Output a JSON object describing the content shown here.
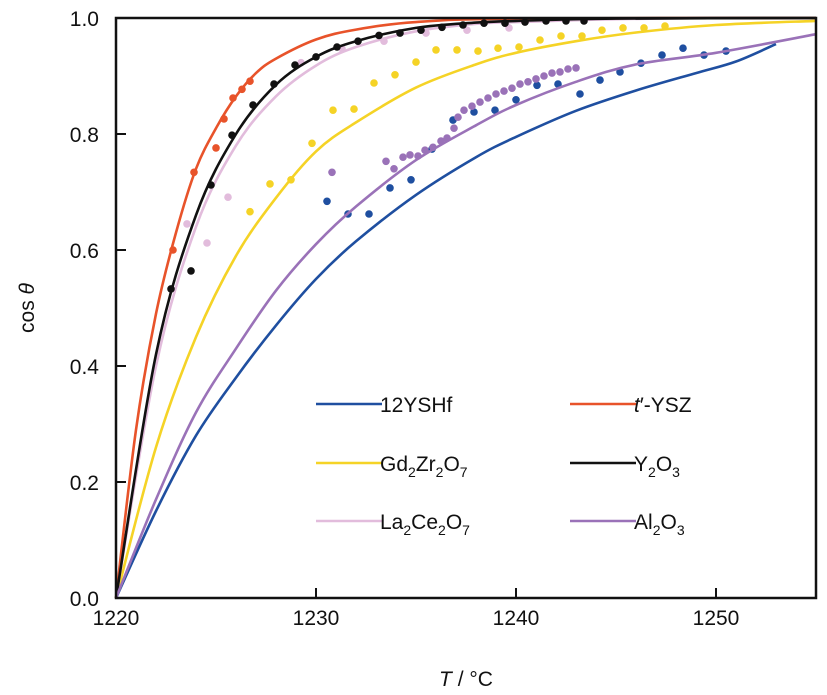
{
  "chart_data": {
    "type": "line",
    "title": "",
    "xlabel": "T / °C",
    "xlabel_italic": "T",
    "xlabel_rest": " / °C",
    "ylabel": "cos θ",
    "xlim": [
      1220,
      1255
    ],
    "ylim": [
      0.0,
      1.0
    ],
    "xticks": [
      1220,
      1230,
      1240,
      1250
    ],
    "xtick_labels": [
      "1220",
      "1230",
      "1240",
      "1250"
    ],
    "yticks": [
      0.0,
      0.2,
      0.4,
      0.6,
      0.8,
      1.0
    ],
    "ytick_labels": [
      "0.0",
      "0.2",
      "0.4",
      "0.6",
      "0.8",
      "1.0"
    ],
    "grid": false,
    "legend_placement": "lower-right",
    "series": [
      {
        "name": "12YSHf",
        "label_parts": [
          [
            "12YSHf",
            ""
          ]
        ],
        "color": "#1f4fa0",
        "fit": [
          [
            1220,
            0.0
          ],
          [
            1222,
            0.15
          ],
          [
            1224,
            0.28
          ],
          [
            1226,
            0.38
          ],
          [
            1228,
            0.47
          ],
          [
            1230,
            0.55
          ],
          [
            1232,
            0.615
          ],
          [
            1235,
            0.695
          ],
          [
            1238,
            0.76
          ],
          [
            1240,
            0.795
          ],
          [
            1243,
            0.84
          ],
          [
            1246,
            0.875
          ],
          [
            1249,
            0.905
          ],
          [
            1251,
            0.925
          ],
          [
            1253,
            0.955
          ]
        ],
        "points": [
          [
            1230.55,
            0.684
          ],
          [
            1231.6,
            0.662
          ],
          [
            1232.65,
            0.662
          ],
          [
            1233.7,
            0.707
          ],
          [
            1234.75,
            0.721
          ],
          [
            1235.8,
            0.774
          ],
          [
            1236.85,
            0.824
          ],
          [
            1237.9,
            0.838
          ],
          [
            1238.95,
            0.841
          ],
          [
            1240.0,
            0.859
          ],
          [
            1241.05,
            0.884
          ],
          [
            1242.1,
            0.886
          ],
          [
            1243.2,
            0.869
          ],
          [
            1244.2,
            0.893
          ],
          [
            1245.2,
            0.907
          ],
          [
            1246.25,
            0.922
          ],
          [
            1247.3,
            0.936
          ],
          [
            1248.35,
            0.948
          ],
          [
            1249.4,
            0.936
          ],
          [
            1250.5,
            0.943
          ]
        ]
      },
      {
        "name": "Gd2Zr2O7",
        "label_parts": [
          [
            "Gd",
            ""
          ],
          [
            "2",
            "sub"
          ],
          [
            "Zr",
            ""
          ],
          [
            "2",
            "sub"
          ],
          [
            "O",
            ""
          ],
          [
            "7",
            "sub"
          ]
        ],
        "color": "#f5d326",
        "fit": [
          [
            1220,
            0.0
          ],
          [
            1222,
            0.26
          ],
          [
            1224,
            0.45
          ],
          [
            1226,
            0.59
          ],
          [
            1228,
            0.69
          ],
          [
            1230,
            0.77
          ],
          [
            1232,
            0.82
          ],
          [
            1235,
            0.88
          ],
          [
            1238,
            0.92
          ],
          [
            1240,
            0.94
          ],
          [
            1243,
            0.96
          ],
          [
            1246,
            0.975
          ],
          [
            1250,
            0.988
          ],
          [
            1255,
            0.995
          ]
        ],
        "points": [
          [
            1226.7,
            0.666
          ],
          [
            1227.7,
            0.714
          ],
          [
            1228.75,
            0.721
          ],
          [
            1229.8,
            0.784
          ],
          [
            1230.85,
            0.841
          ],
          [
            1231.9,
            0.843
          ],
          [
            1232.9,
            0.888
          ],
          [
            1233.95,
            0.902
          ],
          [
            1235.0,
            0.924
          ],
          [
            1236.0,
            0.945
          ],
          [
            1237.05,
            0.945
          ],
          [
            1238.1,
            0.943
          ],
          [
            1239.1,
            0.948
          ],
          [
            1240.15,
            0.95
          ],
          [
            1241.2,
            0.962
          ],
          [
            1242.25,
            0.969
          ],
          [
            1243.3,
            0.969
          ],
          [
            1244.3,
            0.979
          ],
          [
            1245.35,
            0.983
          ],
          [
            1246.4,
            0.983
          ],
          [
            1247.45,
            0.986
          ]
        ]
      },
      {
        "name": "La2Ce2O7",
        "label_parts": [
          [
            "La",
            ""
          ],
          [
            "2",
            "sub"
          ],
          [
            "Ce",
            ""
          ],
          [
            "2",
            "sub"
          ],
          [
            "O",
            ""
          ],
          [
            "7",
            "sub"
          ]
        ],
        "color": "#e2bcdc",
        "fit": [
          [
            1220,
            0.0
          ],
          [
            1222,
            0.4
          ],
          [
            1224,
            0.64
          ],
          [
            1226,
            0.78
          ],
          [
            1228,
            0.865
          ],
          [
            1230,
            0.918
          ],
          [
            1232,
            0.95
          ],
          [
            1235,
            0.977
          ],
          [
            1238,
            0.99
          ],
          [
            1240,
            0.993
          ],
          [
            1245,
            0.998
          ],
          [
            1250,
            1.0
          ],
          [
            1255,
            1.0
          ]
        ],
        "points": [
          [
            1223.55,
            0.645
          ],
          [
            1224.55,
            0.612
          ],
          [
            1225.6,
            0.691
          ],
          [
            1229.25,
            0.923
          ],
          [
            1231.3,
            0.947
          ],
          [
            1233.4,
            0.96
          ],
          [
            1235.5,
            0.974
          ],
          [
            1237.55,
            0.979
          ],
          [
            1239.65,
            0.983
          ]
        ]
      },
      {
        "name": "t′-YSZ",
        "label_parts": [
          [
            "t",
            "italic"
          ],
          [
            "′-YSZ",
            ""
          ]
        ],
        "color": "#e8532a",
        "fit": [
          [
            1220,
            0.0
          ],
          [
            1221,
            0.29
          ],
          [
            1222,
            0.49
          ],
          [
            1223,
            0.63
          ],
          [
            1224,
            0.74
          ],
          [
            1225,
            0.81
          ],
          [
            1226,
            0.865
          ],
          [
            1227,
            0.905
          ],
          [
            1228,
            0.93
          ],
          [
            1230,
            0.963
          ],
          [
            1232,
            0.98
          ],
          [
            1235,
            0.993
          ],
          [
            1240,
            0.999
          ],
          [
            1255,
            1.0
          ]
        ],
        "points": [
          [
            1222.85,
            0.6
          ],
          [
            1223.9,
            0.734
          ],
          [
            1225.0,
            0.776
          ],
          [
            1225.4,
            0.826
          ],
          [
            1225.85,
            0.862
          ],
          [
            1226.3,
            0.877
          ],
          [
            1226.7,
            0.891
          ]
        ]
      },
      {
        "name": "Y2O3",
        "label_parts": [
          [
            "Y",
            ""
          ],
          [
            "2",
            "sub"
          ],
          [
            "O",
            ""
          ],
          [
            "3",
            "sub"
          ]
        ],
        "color": "#111111",
        "fit": [
          [
            1220,
            0.0
          ],
          [
            1222,
            0.42
          ],
          [
            1224,
            0.66
          ],
          [
            1226,
            0.8
          ],
          [
            1228,
            0.885
          ],
          [
            1230,
            0.933
          ],
          [
            1232,
            0.96
          ],
          [
            1235,
            0.983
          ],
          [
            1238,
            0.992
          ],
          [
            1240,
            0.995
          ],
          [
            1245,
            0.999
          ],
          [
            1255,
            1.0
          ]
        ],
        "points": [
          [
            1222.75,
            0.533
          ],
          [
            1223.75,
            0.564
          ],
          [
            1224.75,
            0.712
          ],
          [
            1225.8,
            0.798
          ],
          [
            1226.85,
            0.85
          ],
          [
            1227.9,
            0.886
          ],
          [
            1228.95,
            0.919
          ],
          [
            1230.0,
            0.933
          ],
          [
            1231.05,
            0.95
          ],
          [
            1232.1,
            0.96
          ],
          [
            1233.15,
            0.97
          ],
          [
            1234.2,
            0.974
          ],
          [
            1235.25,
            0.979
          ],
          [
            1236.3,
            0.984
          ],
          [
            1237.35,
            0.988
          ],
          [
            1238.4,
            0.991
          ],
          [
            1239.45,
            0.991
          ],
          [
            1240.45,
            0.993
          ],
          [
            1241.5,
            0.995
          ],
          [
            1242.5,
            0.995
          ],
          [
            1243.4,
            0.995
          ]
        ]
      },
      {
        "name": "Al2O3",
        "label_parts": [
          [
            "Al",
            ""
          ],
          [
            "2",
            "sub"
          ],
          [
            "O",
            ""
          ],
          [
            "3",
            "sub"
          ]
        ],
        "color": "#9a72b8",
        "fit": [
          [
            1220,
            0.0
          ],
          [
            1222,
            0.17
          ],
          [
            1224,
            0.32
          ],
          [
            1226,
            0.43
          ],
          [
            1228,
            0.53
          ],
          [
            1230,
            0.61
          ],
          [
            1232,
            0.675
          ],
          [
            1235,
            0.755
          ],
          [
            1238,
            0.815
          ],
          [
            1240,
            0.85
          ],
          [
            1243,
            0.89
          ],
          [
            1246,
            0.92
          ],
          [
            1250,
            0.94
          ],
          [
            1255,
            0.972
          ]
        ],
        "points": [
          [
            1230.8,
            0.734
          ],
          [
            1233.5,
            0.753
          ],
          [
            1233.9,
            0.74
          ],
          [
            1234.35,
            0.76
          ],
          [
            1234.7,
            0.764
          ],
          [
            1235.1,
            0.762
          ],
          [
            1235.45,
            0.772
          ],
          [
            1235.85,
            0.777
          ],
          [
            1236.25,
            0.788
          ],
          [
            1236.55,
            0.793
          ],
          [
            1236.9,
            0.81
          ],
          [
            1237.1,
            0.829
          ],
          [
            1237.4,
            0.841
          ],
          [
            1237.8,
            0.848
          ],
          [
            1238.2,
            0.855
          ],
          [
            1238.6,
            0.862
          ],
          [
            1239.0,
            0.869
          ],
          [
            1239.4,
            0.874
          ],
          [
            1239.8,
            0.879
          ],
          [
            1240.2,
            0.886
          ],
          [
            1240.6,
            0.89
          ],
          [
            1241.0,
            0.895
          ],
          [
            1241.4,
            0.9
          ],
          [
            1241.8,
            0.905
          ],
          [
            1242.2,
            0.907
          ],
          [
            1242.6,
            0.912
          ],
          [
            1243.0,
            0.914
          ]
        ]
      }
    ],
    "legend_order": [
      0,
      3,
      1,
      4,
      2,
      5
    ]
  }
}
